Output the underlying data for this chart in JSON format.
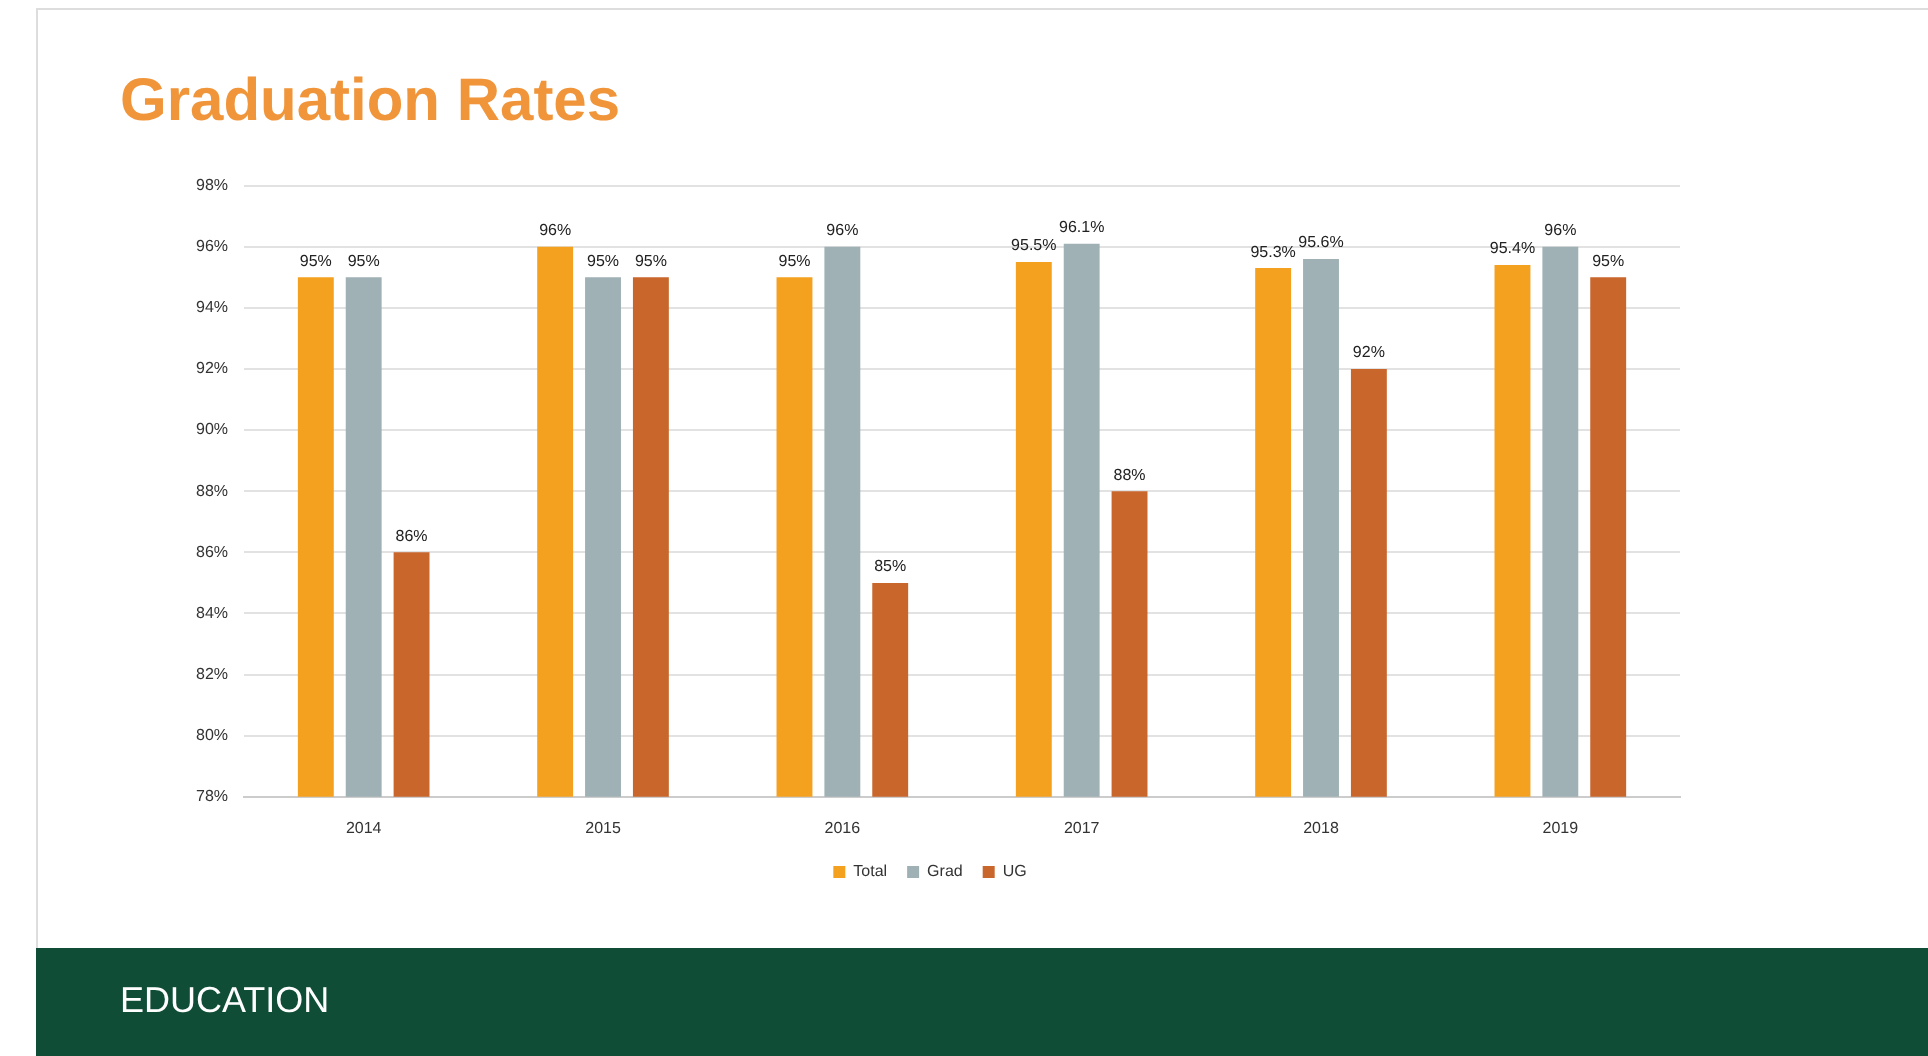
{
  "chart_data": {
    "type": "bar",
    "title": "Graduation Rates",
    "categories": [
      "2014",
      "2015",
      "2016",
      "2017",
      "2018",
      "2019"
    ],
    "series": [
      {
        "name": "Total",
        "color": "#f4a11f",
        "values": [
          95,
          96,
          95,
          95.5,
          95.3,
          95.4
        ],
        "value_labels": [
          "95%",
          "96%",
          "95%",
          "95.5%",
          "95.3%",
          "95.4%"
        ]
      },
      {
        "name": "Grad",
        "color": "#9fb1b4",
        "values": [
          95,
          95,
          96,
          96.1,
          95.6,
          96
        ],
        "value_labels": [
          "95%",
          "95%",
          "96%",
          "96.1%",
          "95.6%",
          "96%"
        ]
      },
      {
        "name": "UG",
        "color": "#c9662b",
        "values": [
          86,
          95,
          85,
          88,
          92,
          95
        ],
        "value_labels": [
          "86%",
          "95%",
          "85%",
          "88%",
          "92%",
          "95%"
        ]
      }
    ],
    "ylim": [
      78,
      98
    ],
    "yticks": [
      {
        "value": 78,
        "label": "78%"
      },
      {
        "value": 80,
        "label": "80%"
      },
      {
        "value": 82,
        "label": "82%"
      },
      {
        "value": 84,
        "label": "84%"
      },
      {
        "value": 86,
        "label": "86%"
      },
      {
        "value": 88,
        "label": "88%"
      },
      {
        "value": 90,
        "label": "90%"
      },
      {
        "value": 92,
        "label": "92%"
      },
      {
        "value": 94,
        "label": "94%"
      },
      {
        "value": 96,
        "label": "96%"
      },
      {
        "value": 98,
        "label": "98%"
      }
    ],
    "grid": "y",
    "legend": "bottom",
    "annotations": [
      "EDUCATION"
    ]
  }
}
